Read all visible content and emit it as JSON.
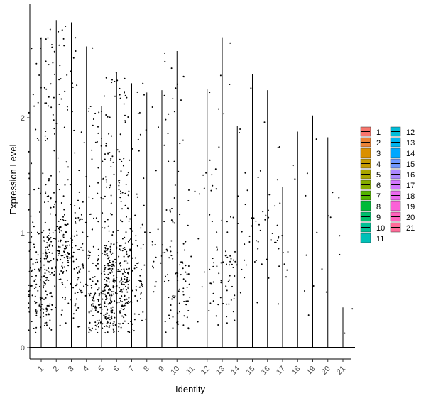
{
  "chart_data": {
    "type": "violin",
    "xlabel": "Identity",
    "ylabel": "Expression Level",
    "ylim": [
      -0.12,
      3.0
    ],
    "y_ticks": [
      "0",
      "1",
      "2"
    ],
    "y_tick_values": [
      0,
      1,
      2
    ],
    "categories": [
      "1",
      "2",
      "3",
      "4",
      "5",
      "6",
      "7",
      "8",
      "9",
      "10",
      "11",
      "12",
      "13",
      "14",
      "15",
      "16",
      "17",
      "18",
      "19",
      "20",
      "21"
    ],
    "max_values": [
      2.7,
      2.85,
      2.83,
      2.62,
      2.1,
      2.4,
      2.3,
      2.22,
      2.24,
      2.58,
      1.88,
      2.25,
      2.7,
      1.93,
      2.38,
      2.24,
      1.4,
      1.88,
      2.02,
      1.83,
      0.35
    ],
    "point_density": [
      190,
      150,
      110,
      60,
      190,
      270,
      100,
      25,
      18,
      100,
      6,
      12,
      60,
      22,
      16,
      28,
      8,
      5,
      6,
      8,
      2
    ],
    "point_center": [
      0.55,
      0.9,
      0.8,
      0.6,
      0.35,
      0.55,
      0.55,
      0.8,
      0.8,
      0.55,
      1.0,
      1.4,
      0.6,
      1.0,
      1.0,
      0.9,
      0.8,
      0.7,
      0.7,
      1.0,
      0.33
    ],
    "colors": [
      "#F8766D",
      "#EB8335",
      "#DA8F00",
      "#C49A00",
      "#A9A400",
      "#86AC00",
      "#53B400",
      "#00BA38",
      "#00BE6C",
      "#00C094",
      "#00C0B7",
      "#00BCD8",
      "#00B4F0",
      "#00A7FF",
      "#6F98FF",
      "#AB88FF",
      "#D277FF",
      "#EC69EF",
      "#FB61D7",
      "#FF62BC",
      "#FF6C99"
    ],
    "legend_position": "right"
  }
}
